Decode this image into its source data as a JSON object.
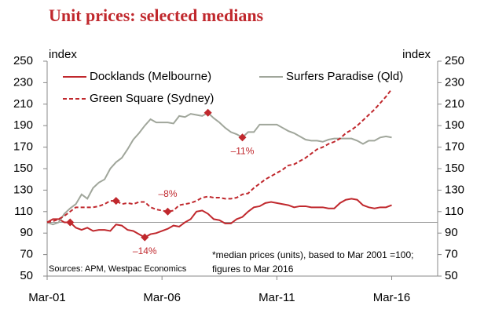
{
  "chart_data": {
    "type": "line",
    "title": "Unit prices: selected medians",
    "y_label": "index",
    "y2_label": "index",
    "source": "Sources: APM, Westpac Economics",
    "note": [
      "*median prices (units), based to Mar 2001 =100;",
      "figures to Mar 2016"
    ],
    "categories": [
      "Mar-01",
      null,
      null,
      null,
      null,
      null,
      null,
      null,
      null,
      null,
      null,
      null,
      null,
      null,
      null,
      null,
      null,
      null,
      null,
      null,
      "Mar-06",
      null,
      null,
      null,
      null,
      null,
      null,
      null,
      null,
      null,
      null,
      null,
      null,
      null,
      null,
      null,
      null,
      null,
      null,
      null,
      "Mar-11",
      null,
      null,
      null,
      null,
      null,
      null,
      null,
      null,
      null,
      null,
      null,
      null,
      null,
      null,
      null,
      null,
      null,
      null,
      null,
      "Mar-16",
      null,
      null,
      null,
      null,
      null,
      null,
      null,
      null
    ],
    "series": [
      {
        "name": "Docklands (Melbourne)",
        "color": "#c0282d",
        "dash": false,
        "values": [
          100,
          103,
          103,
          100,
          100,
          95,
          93,
          95,
          92,
          93,
          93,
          92,
          98,
          97,
          93,
          92,
          89,
          86,
          89,
          90,
          92,
          94,
          97,
          96,
          100,
          103,
          110,
          111,
          108,
          103,
          102,
          99,
          99,
          103,
          105,
          110,
          114,
          115,
          118,
          119,
          118,
          117,
          116,
          114,
          115,
          115,
          114,
          114,
          114,
          113,
          113,
          118,
          121,
          122,
          121,
          116,
          114,
          113,
          114,
          114,
          116,
          null,
          null,
          null,
          null,
          null,
          null,
          null,
          null
        ]
      },
      {
        "name": "Surfers Paradise (Qld)",
        "color": "#a0a69b",
        "dash": false,
        "values": [
          100,
          98,
          100,
          108,
          113,
          117,
          126,
          122,
          132,
          137,
          140,
          150,
          156,
          160,
          168,
          177,
          183,
          190,
          196,
          193,
          193,
          193,
          192,
          199,
          198,
          201,
          200,
          199,
          202,
          197,
          193,
          188,
          184,
          182,
          179,
          184,
          184,
          191,
          191,
          191,
          191,
          188,
          185,
          183,
          180,
          177,
          176,
          176,
          175,
          177,
          178,
          178,
          178,
          178,
          176,
          173,
          176,
          176,
          179,
          180,
          179,
          null,
          null,
          null,
          null,
          null,
          null,
          null,
          null
        ]
      },
      {
        "name": "Green Square (Sydney)",
        "color": "#c0282d",
        "dash": true,
        "values": [
          100,
          101,
          103,
          106,
          110,
          114,
          114,
          114,
          114,
          115,
          117,
          120,
          120,
          117,
          118,
          117,
          119,
          119,
          114,
          112,
          111,
          110,
          111,
          116,
          117,
          118,
          120,
          123,
          124,
          123,
          123,
          122,
          122,
          123,
          126,
          127,
          132,
          136,
          140,
          143,
          146,
          149,
          153,
          154,
          157,
          160,
          164,
          168,
          170,
          173,
          175,
          178,
          183,
          186,
          190,
          195,
          200,
          205,
          211,
          217,
          224,
          null,
          null,
          null,
          null,
          null,
          null,
          null,
          null
        ]
      }
    ],
    "annotations": [
      {
        "text": "–14%",
        "series": 0,
        "from": 4,
        "to": 17,
        "label_position": "below"
      },
      {
        "text": "–8%",
        "series": 2,
        "from": 12,
        "to": 21,
        "label_position": "above"
      },
      {
        "text": "–11%",
        "series": 1,
        "from": 28,
        "to": 34,
        "label_position": "below"
      }
    ],
    "reference_line": 100,
    "ylim": [
      50,
      250
    ],
    "yticks": [
      50,
      70,
      90,
      110,
      130,
      150,
      170,
      190,
      210,
      230,
      250
    ],
    "y2lim": [
      50,
      250
    ],
    "y2ticks": [
      50,
      70,
      90,
      110,
      130,
      150,
      170,
      190,
      210,
      230,
      250
    ]
  }
}
